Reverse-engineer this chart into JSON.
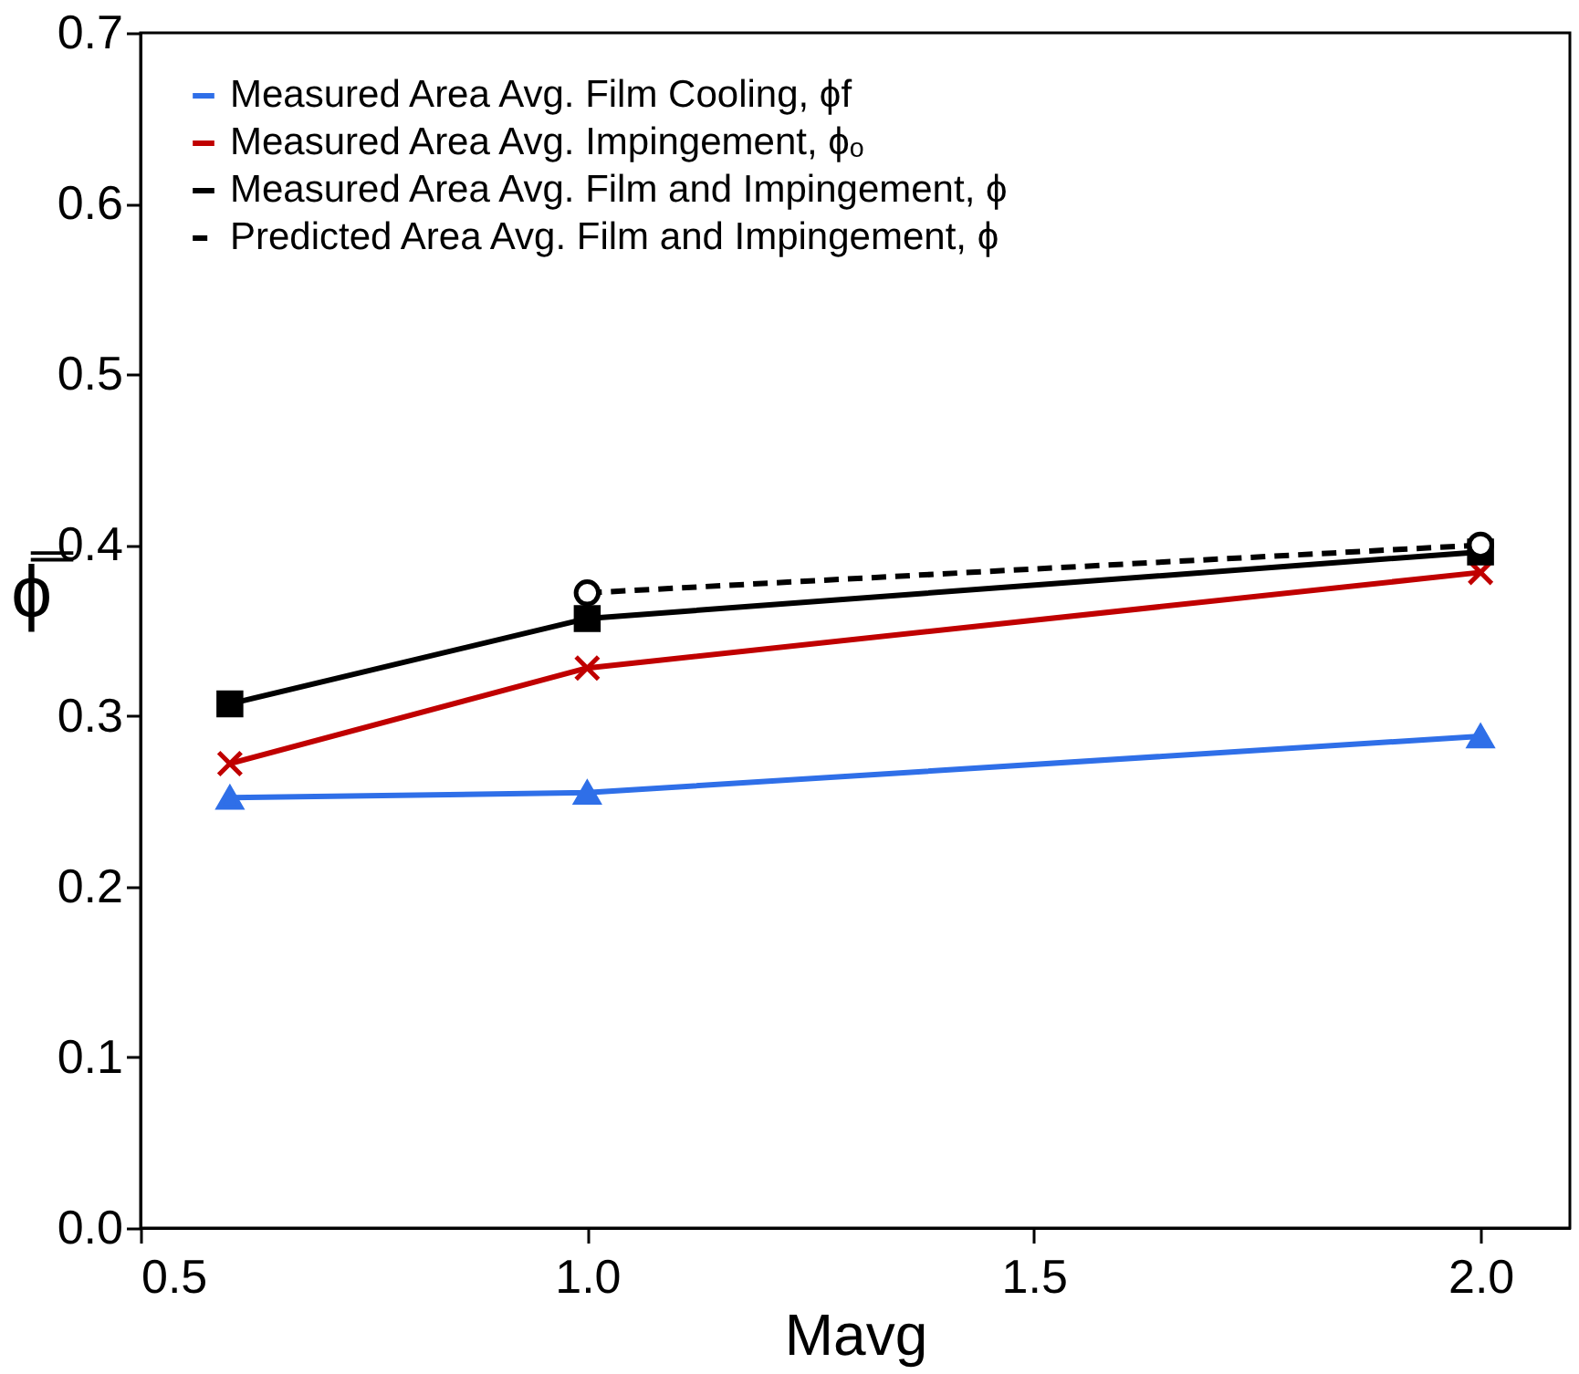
{
  "chart_data": {
    "type": "line",
    "xlabel": "Mavg",
    "ylabel": "ϕ̿",
    "x": [
      0.6,
      1.0,
      2.0
    ],
    "series": [
      {
        "name": "Measured Area Avg. Film Cooling, ϕf",
        "color": "#2f6fe8",
        "values": [
          0.252,
          0.255,
          0.288
        ],
        "marker": "triangle",
        "line_style": "solid"
      },
      {
        "name": "Measured Area Avg. Impingement, ϕₒ",
        "color": "#c00000",
        "values": [
          0.272,
          0.328,
          0.384
        ],
        "marker": "cross",
        "line_style": "solid"
      },
      {
        "name": "Measured Area Avg. Film and Impingement, ϕ",
        "color": "#000000",
        "values": [
          0.307,
          0.357,
          0.396
        ],
        "marker": "square",
        "line_style": "solid"
      },
      {
        "name": "Predicted Area Avg. Film and Impingement, ϕ",
        "color": "#000000",
        "x": [
          1.0,
          2.0
        ],
        "values": [
          0.372,
          0.4
        ],
        "marker": "circle",
        "line_style": "dashed"
      }
    ],
    "xlim": [
      0.5,
      2.1
    ],
    "xticks": [
      {
        "value": 0.5,
        "label": "0.5"
      },
      {
        "value": 1.0,
        "label": "1.0"
      },
      {
        "value": 1.5,
        "label": "1.5"
      },
      {
        "value": 2.0,
        "label": "2.0"
      }
    ],
    "ylim": [
      0,
      0.7
    ],
    "yticks": [
      {
        "value": 0,
        "label": "0.0"
      },
      {
        "value": 0.1,
        "label": "0.1"
      },
      {
        "value": 0.2,
        "label": "0.2"
      },
      {
        "value": 0.3,
        "label": "0.3"
      },
      {
        "value": 0.4,
        "label": "0.4"
      },
      {
        "value": 0.5,
        "label": "0.5"
      },
      {
        "value": 0.6,
        "label": "0.6"
      },
      {
        "value": 0.7,
        "label": "0.7"
      }
    ],
    "grid": false,
    "legend": "top left"
  }
}
